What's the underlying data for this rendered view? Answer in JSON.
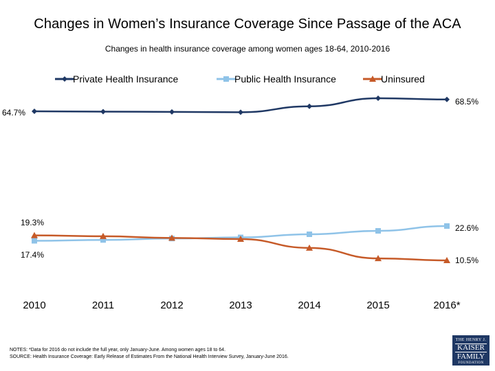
{
  "title": "Changes in Women’s Insurance Coverage Since Passage of the ACA",
  "subtitle": "Changes in health insurance coverage among women ages 18-64, 2010-2016",
  "notes": [
    "NOTES: *Data for 2016 do not include the full year, only January-June. Among women ages 18 to 64.",
    "SOURCE: Health Insurance Coverage: Early Release of Estimates From the National Health Interview Survey, January-June 2016."
  ],
  "logo": {
    "line1": "THE HENRY J.",
    "line2": "KAISER",
    "line3": "FAMILY",
    "line4": "FOUNDATION"
  },
  "chart_data": {
    "type": "line",
    "categories": [
      "2010",
      "2011",
      "2012",
      "2013",
      "2014",
      "2015",
      "2016*"
    ],
    "series": [
      {
        "name": "Private Health Insurance",
        "color": "#1f3864",
        "marker": "diamond",
        "values": [
          64.7,
          64.6,
          64.5,
          64.4,
          66.3,
          68.9,
          68.5
        ],
        "labels": {
          "first": "64.7%",
          "last": "68.5%"
        }
      },
      {
        "name": "Public Health Insurance",
        "color": "#8fc3e8",
        "marker": "square",
        "values": [
          17.4,
          17.7,
          18.2,
          18.6,
          19.7,
          20.9,
          22.6
        ],
        "labels": {
          "first": "17.4%",
          "last": "22.6%"
        }
      },
      {
        "name": "Uninsured",
        "color": "#c65a28",
        "marker": "triangle",
        "values": [
          19.3,
          19.0,
          18.4,
          18.0,
          14.9,
          11.2,
          10.5
        ],
        "labels": {
          "first": "19.3%",
          "last": "10.5%"
        }
      }
    ],
    "legend_position": "top",
    "grid": false
  }
}
